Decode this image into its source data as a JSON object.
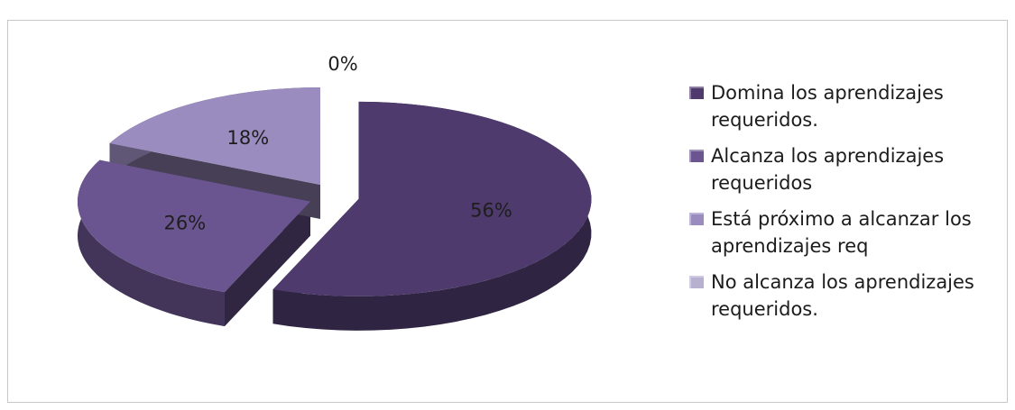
{
  "chart_data": {
    "type": "pie",
    "style": "3d-exploded",
    "title": "",
    "slices": [
      {
        "label": "Domina los aprendizajes requeridos.",
        "value": 56,
        "display": "56%",
        "color": "#4e3a6c"
      },
      {
        "label": "Alcanza los aprendizajes requeridos",
        "value": 26,
        "display": "26%",
        "color": "#6a5590"
      },
      {
        "label": "Está próximo a alcanzar los aprendizajes req",
        "value": 18,
        "display": "18%",
        "color": "#9b8cc0"
      },
      {
        "label": "No alcanza los aprendizajes requeridos.",
        "value": 0,
        "display": "0%",
        "color": "#b7b0cf"
      }
    ],
    "legend_position": "right"
  }
}
